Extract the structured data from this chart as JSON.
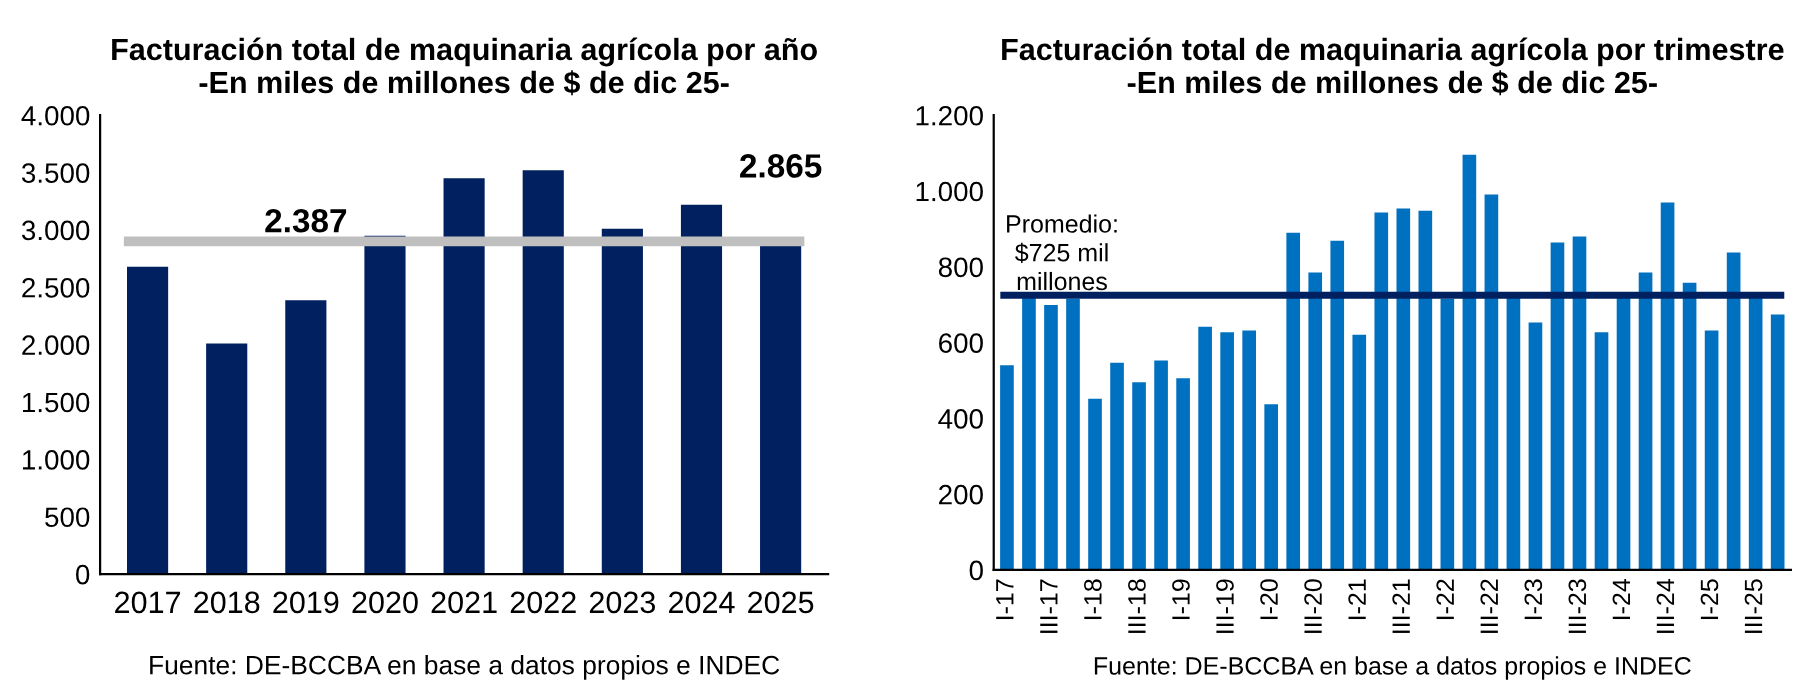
{
  "chart_data": [
    {
      "type": "bar",
      "title": "Facturación total de maquinaria agrícola por año\n-En miles de millones de $ de dic 25-",
      "categories": [
        "2017",
        "2018",
        "2019",
        "2020",
        "2021",
        "2022",
        "2023",
        "2024",
        "2025"
      ],
      "values": [
        2680,
        2010,
        2387,
        2950,
        3450,
        3520,
        3010,
        3220,
        2865
      ],
      "value_labels": [
        null,
        null,
        "2.387",
        null,
        null,
        null,
        null,
        null,
        "2.865"
      ],
      "color": "#002060",
      "ylim": [
        0,
        4000
      ],
      "yticks": [
        {
          "value": 0,
          "label": "0"
        },
        {
          "value": 500,
          "label": "500"
        },
        {
          "value": 1000,
          "label": "1.000"
        },
        {
          "value": 1500,
          "label": "1.500"
        },
        {
          "value": 2000,
          "label": "2.000"
        },
        {
          "value": 2500,
          "label": "2.500"
        },
        {
          "value": 3000,
          "label": "3.000"
        },
        {
          "value": 3500,
          "label": "3.500"
        },
        {
          "value": 4000,
          "label": "4.000"
        }
      ],
      "ref_lines": [
        {
          "axis": "y",
          "value": 2900,
          "label": null,
          "color": "#bfbfbf"
        }
      ],
      "annotations": [
        "Fuente: DE-BCCBA en base a datos propios e INDEC"
      ],
      "grid": false,
      "legend": false
    },
    {
      "type": "bar",
      "title": "Facturación total de maquinaria agrícola por trimestre\n-En miles de millones de $ de dic 25-",
      "categories": [
        "I-17",
        null,
        "III-17",
        null,
        "I-18",
        null,
        "III-18",
        null,
        "I-19",
        null,
        "III-19",
        null,
        "I-20",
        null,
        "III-20",
        null,
        "I-21",
        null,
        "III-21",
        null,
        "I-22",
        null,
        "III-22",
        null,
        "I-23",
        null,
        "III-23",
        null,
        "I-24",
        null,
        "III-24",
        null,
        "I-25",
        null,
        "III-25",
        null
      ],
      "values": [
        540,
        725,
        699,
        716,
        452,
        547,
        495,
        553,
        506,
        642,
        627,
        632,
        437,
        890,
        785,
        869,
        621,
        943,
        954,
        948,
        716,
        1096,
        991,
        725,
        653,
        864,
        880,
        627,
        725,
        785,
        970,
        758,
        632,
        838,
        725,
        674
      ],
      "color": "#0070c0",
      "ylim": [
        0,
        1200
      ],
      "yticks": [
        {
          "value": 0,
          "label": "0"
        },
        {
          "value": 200,
          "label": "200"
        },
        {
          "value": 400,
          "label": "400"
        },
        {
          "value": 600,
          "label": "600"
        },
        {
          "value": 800,
          "label": "800"
        },
        {
          "value": 1000,
          "label": "1.000"
        },
        {
          "value": 1200,
          "label": "1.200"
        }
      ],
      "ref_lines": [
        {
          "axis": "y",
          "value": 725,
          "label": "Promedio:\n$725 mil\nmillones",
          "color": "#002060"
        }
      ],
      "annotations": [
        "Fuente: DE-BCCBA en base a datos propios e INDEC"
      ],
      "grid": false,
      "legend": false
    }
  ]
}
